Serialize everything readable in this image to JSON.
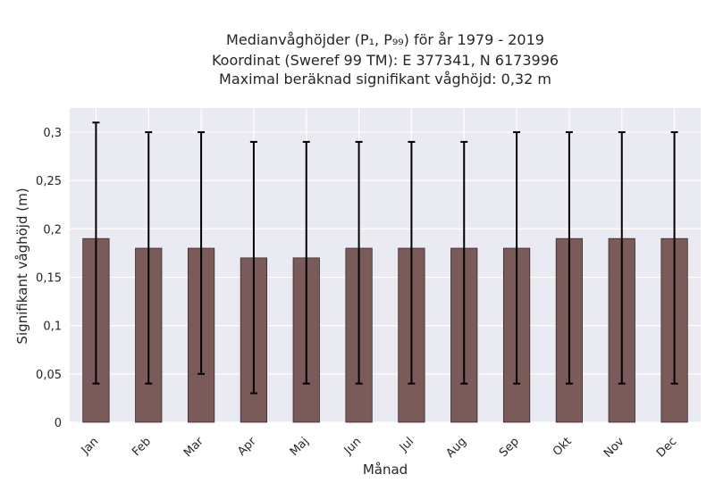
{
  "chart_data": {
    "type": "bar",
    "title_lines": [
      "Medianvåghöjder (P₁, P₉₉) för år 1979 - 2019",
      "Koordinat (Sweref 99 TM): E 377341, N 6173996",
      "Maximal beräknad signifikant våghöjd: 0,32 m"
    ],
    "xlabel": "Månad",
    "ylabel": "Signifikant våghöjd (m)",
    "categories": [
      "Jan",
      "Feb",
      "Mar",
      "Apr",
      "Maj",
      "Jun",
      "Jul",
      "Aug",
      "Sep",
      "Okt",
      "Nov",
      "Dec"
    ],
    "values": [
      0.19,
      0.18,
      0.18,
      0.17,
      0.17,
      0.18,
      0.18,
      0.18,
      0.18,
      0.19,
      0.19,
      0.19
    ],
    "error_low": [
      0.04,
      0.04,
      0.05,
      0.03,
      0.04,
      0.04,
      0.04,
      0.04,
      0.04,
      0.04,
      0.04,
      0.04
    ],
    "error_high": [
      0.31,
      0.3,
      0.3,
      0.29,
      0.29,
      0.29,
      0.29,
      0.29,
      0.3,
      0.3,
      0.3,
      0.3
    ],
    "ylim": [
      0,
      0.325
    ],
    "yticks": [
      0,
      0.05,
      0.1,
      0.15,
      0.2,
      0.25,
      0.3
    ],
    "ytick_labels": [
      "0",
      "0,05",
      "0,1",
      "0,15",
      "0,2",
      "0,25",
      "0,3"
    ],
    "grid": true,
    "colors": {
      "bar": "#7b5a5a",
      "bar_edge": "#3a2a2a",
      "error": "#000000",
      "background": "#eaeaf2",
      "grid": "#ffffff"
    }
  }
}
